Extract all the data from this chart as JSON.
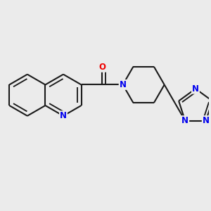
{
  "bg": "#ebebeb",
  "bc": "#1a1a1a",
  "NC": "#0000ee",
  "OC": "#ee0000",
  "lw": 1.5,
  "fs": 8.5,
  "bl": 1.0,
  "xlim": [
    -4.5,
    5.5
  ],
  "ylim": [
    -3.5,
    3.5
  ]
}
